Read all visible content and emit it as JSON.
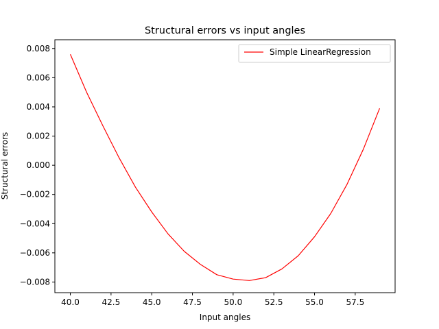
{
  "chart_data": {
    "type": "line",
    "title": "Structural errors vs input angles",
    "xlabel": "Input angles",
    "ylabel": "Structural errors",
    "xlim": [
      39.05,
      59.95
    ],
    "ylim": [
      -0.00873,
      0.0086
    ],
    "x_ticks": [
      40.0,
      42.5,
      45.0,
      47.5,
      50.0,
      52.5,
      55.0,
      57.5
    ],
    "x_tick_labels": [
      "40.0",
      "42.5",
      "45.0",
      "47.5",
      "50.0",
      "52.5",
      "55.0",
      "57.5"
    ],
    "y_ticks": [
      -0.008,
      -0.006,
      -0.004,
      -0.002,
      0.0,
      0.002,
      0.004,
      0.006,
      0.008
    ],
    "y_tick_labels": [
      "−0.008",
      "−0.006",
      "−0.004",
      "−0.002",
      "0.000",
      "0.002",
      "0.004",
      "0.006",
      "0.008"
    ],
    "grid": false,
    "legend_position": "upper right",
    "series": [
      {
        "name": "Simple LinearRegression",
        "color": "#ff0000",
        "x": [
          40,
          41,
          42,
          43,
          44,
          45,
          46,
          47,
          48,
          49,
          50,
          51,
          52,
          53,
          54,
          55,
          56,
          57,
          58,
          59
        ],
        "y": [
          0.0076,
          0.005,
          0.0027,
          0.0005,
          -0.0015,
          -0.0032,
          -0.0047,
          -0.0059,
          -0.0068,
          -0.0075,
          -0.0078,
          -0.0079,
          -0.0077,
          -0.0071,
          -0.0062,
          -0.0049,
          -0.0033,
          -0.0013,
          0.0011,
          0.0039
        ]
      }
    ]
  }
}
